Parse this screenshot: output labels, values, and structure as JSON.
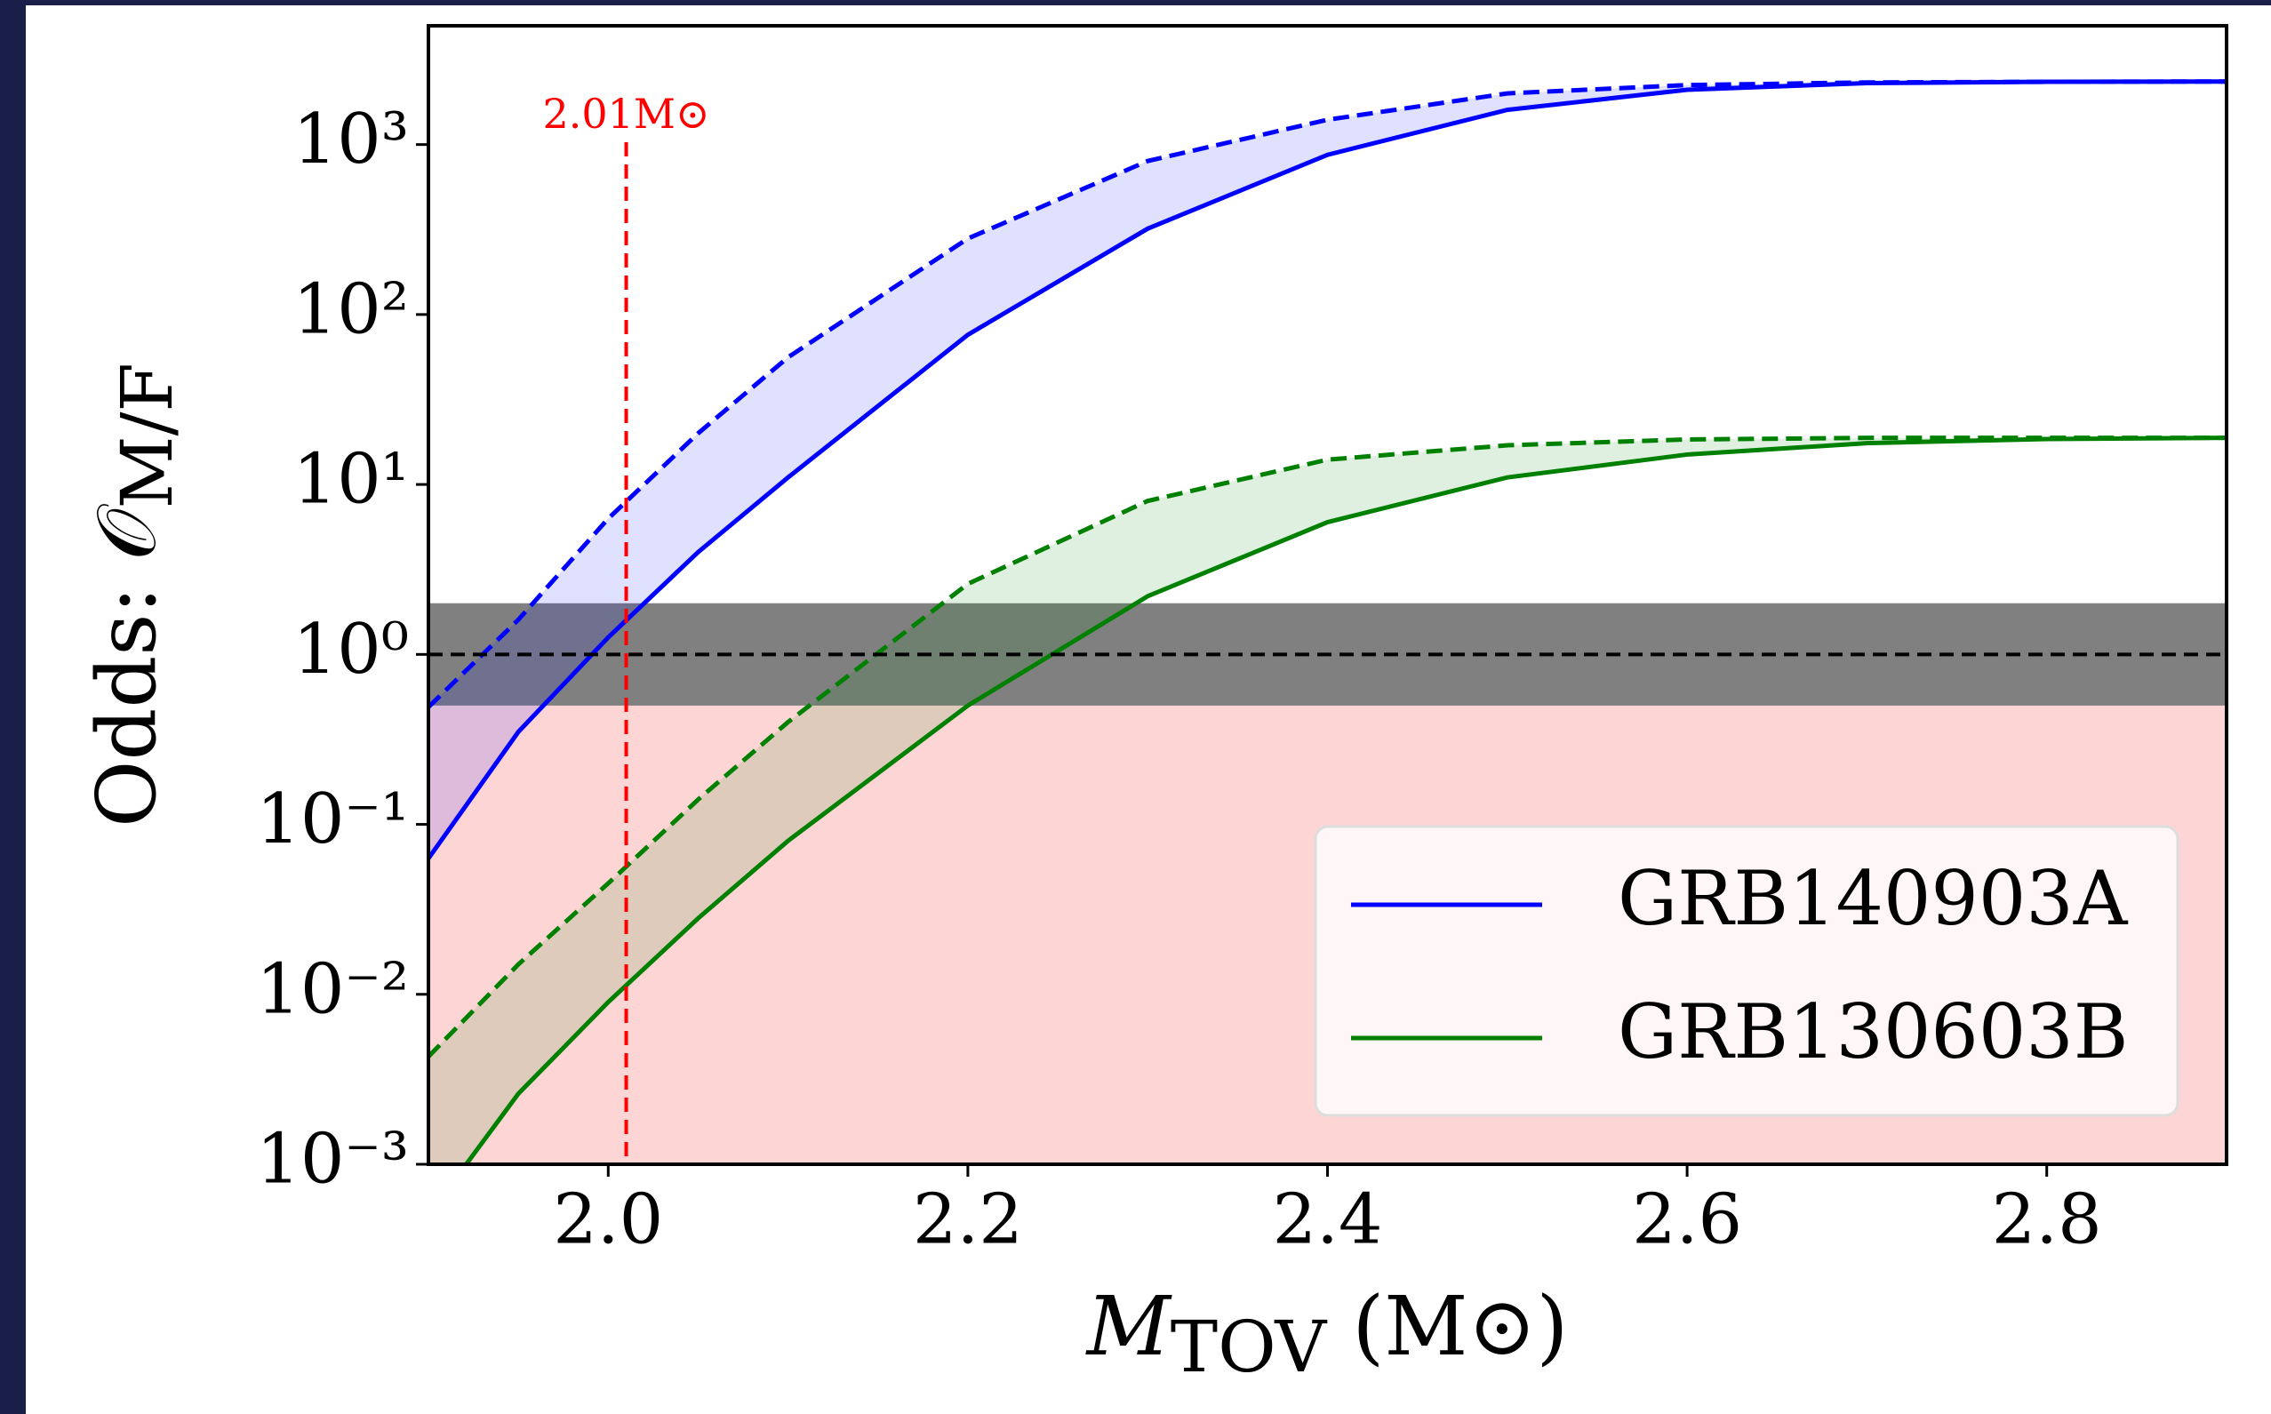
{
  "chart_data": {
    "type": "line",
    "xlabel": {
      "main": "M",
      "sub": "TOV",
      "rest": " (M⊙)"
    },
    "ylabel": {
      "main": "Odds: 𝒪",
      "sub": "M/F"
    },
    "x": [
      1.9,
      1.95,
      2.0,
      2.05,
      2.1,
      2.2,
      2.3,
      2.4,
      2.5,
      2.6,
      2.7,
      2.8,
      2.9
    ],
    "series": [
      {
        "name": "GRB140903A",
        "color": "#0000ff",
        "values": [
          0.063,
          0.35,
          1.26,
          4.0,
          11,
          76,
          320,
          870,
          1600,
          2100,
          2300,
          2340,
          2350
        ],
        "values_upper": [
          0.49,
          1.6,
          6.3,
          20,
          56,
          280,
          800,
          1400,
          2000,
          2240,
          2320,
          2340,
          2350
        ]
      },
      {
        "name": "GRB130603B",
        "color": "#008000",
        "values": [
          0.0005,
          0.0026,
          0.009,
          0.028,
          0.08,
          0.5,
          2.2,
          6,
          11,
          15,
          17.5,
          18.5,
          18.8
        ],
        "values_upper": [
          0.0043,
          0.015,
          0.045,
          0.14,
          0.4,
          2.6,
          8,
          14,
          17,
          18.4,
          18.8,
          18.8,
          18.8
        ]
      }
    ],
    "bands": [
      {
        "from": 0.001,
        "to": 1,
        "color": "#fdd5d5"
      },
      {
        "from": 0.5,
        "to": 2,
        "color": "#808080"
      }
    ],
    "hline": {
      "y": 1,
      "color": "#000000"
    },
    "vline": {
      "x": 2.01,
      "label": "2.01M⊙",
      "color": "#ff0000"
    },
    "xlim": [
      1.9,
      2.9
    ],
    "xticks": [
      {
        "value": 2,
        "label": "2.0"
      },
      2.2,
      2.4,
      2.6,
      2.8
    ],
    "ylim": [
      0.001,
      5000
    ],
    "log_y": true,
    "yticks": [
      {
        "value": 0.001,
        "label": "10⁻³"
      },
      {
        "value": 0.01,
        "label": "10⁻²"
      },
      {
        "value": 0.1,
        "label": "10⁻¹"
      },
      {
        "value": 1,
        "label": "10⁰"
      },
      {
        "value": 10,
        "label": "10¹"
      },
      {
        "value": 100,
        "label": "10²"
      },
      {
        "value": 1000,
        "label": "10³"
      }
    ],
    "legend": "lower right"
  }
}
